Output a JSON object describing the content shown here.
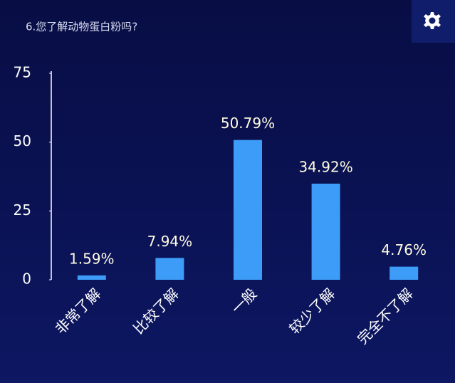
{
  "chart_data": {
    "type": "bar",
    "title": "6.您了解动物蛋白粉吗?",
    "categories": [
      "非常了解",
      "比较了解",
      "一般",
      "较少了解",
      "完全不了解"
    ],
    "values": [
      1.59,
      7.94,
      50.79,
      34.92,
      4.76
    ],
    "value_labels": [
      "1.59%",
      "7.94%",
      "50.79%",
      "34.92%",
      "4.76%"
    ],
    "color": "#3d9cf7",
    "ylim": [
      0,
      75
    ],
    "yticks": [
      0,
      25,
      50,
      75
    ]
  }
}
